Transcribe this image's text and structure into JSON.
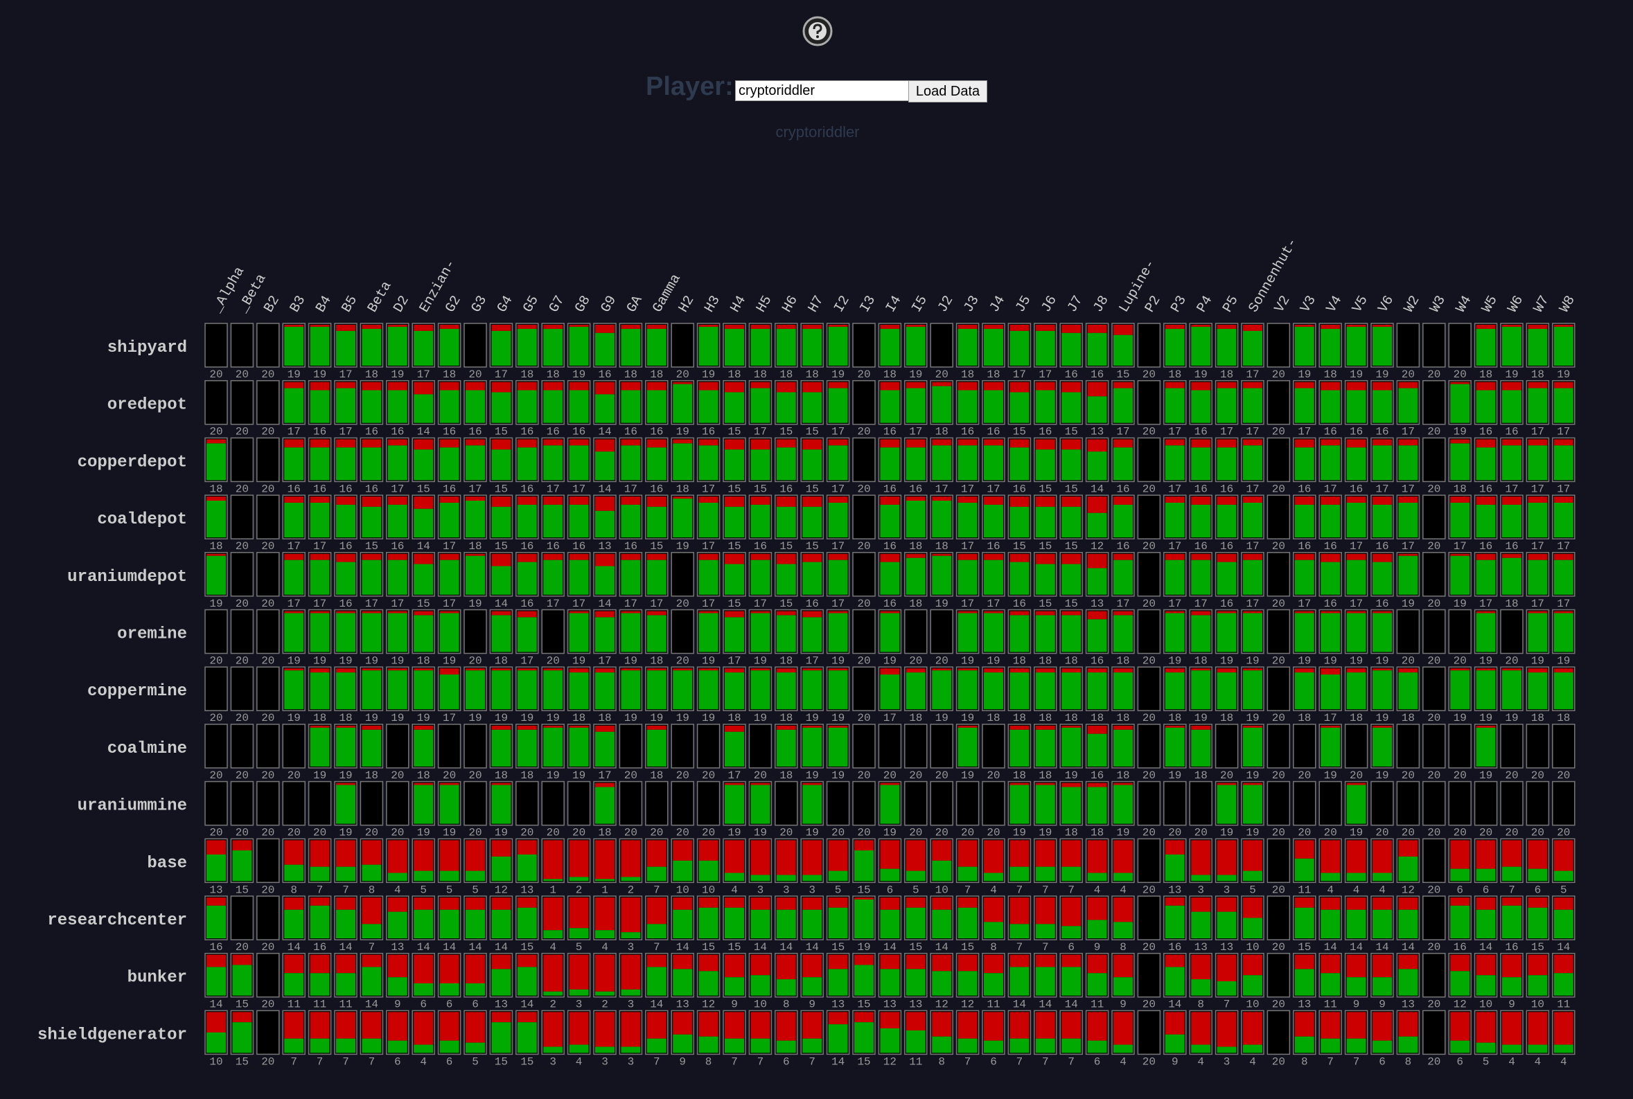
{
  "header": {
    "player_label": "Player:",
    "input_value": "cryptoriddler",
    "button": "Load Data",
    "username": "cryptoriddler"
  },
  "grid": {
    "columns": [
      "_Alpha",
      "_Beta",
      "B2",
      "B3",
      "B4",
      "B5",
      "Beta",
      "D2",
      "Enzian-",
      "G2",
      "G3",
      "G4",
      "G5",
      "G7",
      "G8",
      "G9",
      "GA",
      "Gamma",
      "H2",
      "H3",
      "H4",
      "H5",
      "H6",
      "H7",
      "I2",
      "I3",
      "I4",
      "I5",
      "J2",
      "J3",
      "J4",
      "J5",
      "J6",
      "J7",
      "J8",
      "Lupine-",
      "P2",
      "P3",
      "P4",
      "P5",
      "Sonnenhut-",
      "V2",
      "V3",
      "V4",
      "V5",
      "V6",
      "W2",
      "W3",
      "W4",
      "W5",
      "W6",
      "W7",
      "W8"
    ],
    "rows": [
      {
        "name": "shipyard",
        "values": [
          20,
          20,
          20,
          19,
          19,
          17,
          18,
          19,
          17,
          18,
          20,
          17,
          18,
          18,
          19,
          16,
          18,
          18,
          20,
          19,
          18,
          18,
          18,
          18,
          19,
          20,
          18,
          19,
          20,
          18,
          18,
          17,
          17,
          16,
          16,
          15,
          20,
          18,
          19,
          18,
          17,
          20,
          19,
          18,
          19,
          19,
          20,
          20,
          20,
          18,
          19,
          18,
          19
        ]
      },
      {
        "name": "oredepot",
        "values": [
          20,
          20,
          20,
          17,
          16,
          17,
          16,
          16,
          14,
          16,
          16,
          15,
          16,
          16,
          16,
          14,
          16,
          16,
          19,
          16,
          15,
          17,
          15,
          15,
          17,
          20,
          16,
          17,
          18,
          16,
          16,
          15,
          16,
          15,
          13,
          17,
          20,
          17,
          16,
          17,
          17,
          20,
          17,
          16,
          16,
          16,
          17,
          20,
          19,
          16,
          16,
          17,
          17
        ]
      },
      {
        "name": "copperdepot",
        "values": [
          18,
          20,
          20,
          16,
          16,
          16,
          16,
          17,
          15,
          16,
          17,
          15,
          16,
          17,
          17,
          14,
          17,
          16,
          18,
          17,
          15,
          15,
          16,
          15,
          17,
          20,
          16,
          16,
          17,
          17,
          17,
          16,
          15,
          15,
          14,
          16,
          20,
          17,
          16,
          16,
          17,
          20,
          16,
          17,
          16,
          17,
          17,
          20,
          18,
          16,
          17,
          17,
          17
        ]
      },
      {
        "name": "coaldepot",
        "values": [
          18,
          20,
          20,
          17,
          17,
          16,
          15,
          16,
          14,
          17,
          18,
          15,
          16,
          16,
          16,
          13,
          16,
          15,
          19,
          17,
          15,
          16,
          15,
          15,
          17,
          20,
          16,
          18,
          18,
          17,
          16,
          15,
          15,
          15,
          12,
          16,
          20,
          17,
          16,
          16,
          17,
          20,
          16,
          16,
          17,
          16,
          17,
          20,
          17,
          16,
          16,
          17,
          17
        ]
      },
      {
        "name": "uraniumdepot",
        "values": [
          19,
          20,
          20,
          17,
          17,
          16,
          17,
          17,
          15,
          17,
          19,
          14,
          16,
          17,
          17,
          14,
          17,
          17,
          20,
          17,
          15,
          17,
          15,
          16,
          17,
          20,
          16,
          18,
          19,
          17,
          17,
          16,
          15,
          15,
          13,
          17,
          20,
          17,
          17,
          16,
          17,
          20,
          17,
          16,
          17,
          16,
          19,
          20,
          19,
          17,
          18,
          17,
          17
        ]
      },
      {
        "name": "oremine",
        "values": [
          20,
          20,
          20,
          19,
          19,
          19,
          19,
          19,
          18,
          19,
          20,
          18,
          17,
          20,
          19,
          17,
          19,
          18,
          20,
          19,
          17,
          19,
          18,
          17,
          19,
          20,
          19,
          20,
          20,
          19,
          19,
          18,
          18,
          18,
          16,
          18,
          20,
          19,
          18,
          19,
          19,
          20,
          19,
          19,
          19,
          19,
          20,
          20,
          20,
          19,
          20,
          19,
          19
        ]
      },
      {
        "name": "coppermine",
        "values": [
          20,
          20,
          20,
          19,
          18,
          18,
          19,
          19,
          19,
          17,
          19,
          19,
          19,
          19,
          18,
          18,
          19,
          19,
          19,
          19,
          18,
          19,
          18,
          19,
          19,
          20,
          17,
          18,
          19,
          19,
          18,
          18,
          18,
          18,
          18,
          18,
          20,
          18,
          19,
          18,
          19,
          20,
          18,
          17,
          18,
          19,
          18,
          20,
          19,
          19,
          19,
          18,
          18
        ]
      },
      {
        "name": "coalmine",
        "values": [
          20,
          20,
          20,
          20,
          19,
          19,
          18,
          20,
          18,
          20,
          20,
          18,
          18,
          19,
          19,
          17,
          20,
          18,
          20,
          20,
          17,
          20,
          18,
          19,
          19,
          20,
          20,
          20,
          20,
          19,
          20,
          18,
          18,
          19,
          16,
          18,
          20,
          19,
          18,
          20,
          19,
          20,
          20,
          19,
          20,
          19,
          20,
          20,
          20,
          19,
          20,
          20,
          20
        ]
      },
      {
        "name": "uraniummine",
        "values": [
          20,
          20,
          20,
          20,
          20,
          19,
          20,
          20,
          19,
          19,
          20,
          19,
          20,
          20,
          20,
          18,
          20,
          20,
          20,
          20,
          19,
          19,
          20,
          19,
          20,
          20,
          19,
          20,
          20,
          20,
          20,
          19,
          19,
          18,
          18,
          19,
          20,
          20,
          20,
          19,
          19,
          20,
          20,
          20,
          19,
          20,
          20,
          20,
          20,
          20,
          20,
          20,
          20
        ]
      },
      {
        "name": "base",
        "values": [
          13,
          15,
          20,
          8,
          7,
          7,
          8,
          4,
          5,
          5,
          5,
          12,
          13,
          1,
          2,
          1,
          2,
          7,
          10,
          10,
          4,
          3,
          3,
          3,
          5,
          15,
          6,
          5,
          10,
          7,
          4,
          7,
          7,
          7,
          4,
          4,
          20,
          13,
          3,
          3,
          5,
          20,
          11,
          4,
          4,
          4,
          12,
          20,
          6,
          6,
          7,
          6,
          5
        ]
      },
      {
        "name": "researchcenter",
        "values": [
          16,
          20,
          20,
          14,
          16,
          14,
          7,
          13,
          14,
          14,
          14,
          14,
          15,
          4,
          5,
          4,
          3,
          7,
          14,
          15,
          15,
          14,
          14,
          14,
          15,
          19,
          14,
          15,
          14,
          15,
          8,
          7,
          7,
          6,
          9,
          8,
          20,
          16,
          13,
          13,
          10,
          20,
          15,
          14,
          14,
          14,
          14,
          20,
          16,
          14,
          16,
          15,
          14
        ]
      },
      {
        "name": "bunker",
        "values": [
          14,
          15,
          20,
          11,
          11,
          11,
          14,
          9,
          6,
          6,
          6,
          13,
          14,
          2,
          3,
          2,
          3,
          14,
          13,
          12,
          9,
          10,
          8,
          9,
          13,
          15,
          13,
          13,
          12,
          12,
          11,
          14,
          14,
          14,
          11,
          9,
          20,
          14,
          8,
          7,
          10,
          20,
          13,
          11,
          9,
          9,
          13,
          20,
          12,
          10,
          9,
          10,
          11
        ]
      },
      {
        "name": "shieldgenerator",
        "values": [
          10,
          15,
          20,
          7,
          7,
          7,
          7,
          6,
          4,
          6,
          5,
          15,
          15,
          3,
          4,
          3,
          3,
          7,
          9,
          8,
          7,
          7,
          6,
          7,
          14,
          15,
          12,
          11,
          8,
          7,
          6,
          7,
          7,
          7,
          6,
          4,
          20,
          9,
          4,
          3,
          4,
          20,
          8,
          7,
          7,
          6,
          8,
          20,
          6,
          5,
          4,
          4,
          4
        ]
      }
    ]
  }
}
